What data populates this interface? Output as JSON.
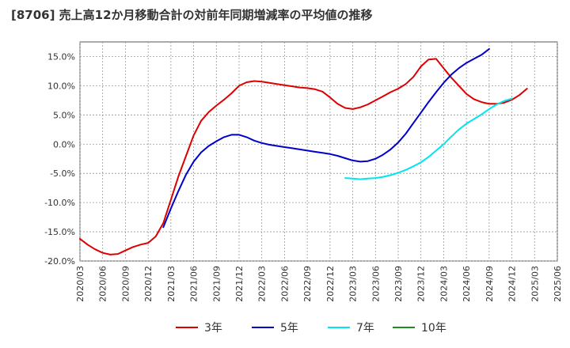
{
  "chart_data": {
    "type": "line",
    "title": "[8706]  売上高12か月移動合計の対前年同期増減率の平均値の推移",
    "xlabel": "",
    "ylabel": "",
    "ylim": [
      -20,
      17.5
    ],
    "yticks": [
      15,
      10,
      5,
      0,
      -5,
      -10,
      -15,
      -20
    ],
    "ytick_labels": [
      "15.0%",
      "10.0%",
      "5.0%",
      "0.0%",
      "-5.0%",
      "-10.0%",
      "-15.0%",
      "-20.0%"
    ],
    "x_start": "2020/03",
    "x_end": "2025/06",
    "x_tick_labels": [
      "2020/03",
      "2020/06",
      "2020/09",
      "2020/12",
      "2021/03",
      "2021/06",
      "2021/09",
      "2021/12",
      "2022/03",
      "2022/06",
      "2022/09",
      "2022/12",
      "2023/03",
      "2023/06",
      "2023/09",
      "2023/12",
      "2024/03",
      "2024/06",
      "2024/09",
      "2024/12",
      "2025/03",
      "2025/06"
    ],
    "grid": true,
    "legend_position": "bottom",
    "series": [
      {
        "name": "3年",
        "color": "#dd0000",
        "start": "2020/03",
        "values": [
          -16.2,
          -17.2,
          -18.0,
          -18.6,
          -18.9,
          -18.8,
          -18.2,
          -17.6,
          -17.2,
          -16.9,
          -15.8,
          -13.5,
          -9.5,
          -5.5,
          -2.0,
          1.5,
          4.0,
          5.5,
          6.6,
          7.6,
          8.7,
          10.0,
          10.6,
          10.8,
          10.7,
          10.5,
          10.3,
          10.1,
          9.9,
          9.7,
          9.6,
          9.4,
          9.0,
          8.0,
          6.9,
          6.2,
          6.0,
          6.3,
          6.8,
          7.5,
          8.2,
          8.9,
          9.5,
          10.3,
          11.5,
          13.3,
          14.5,
          14.6,
          13.0,
          11.4,
          10.0,
          8.6,
          7.7,
          7.2,
          6.9,
          6.9,
          7.1,
          7.6,
          8.4,
          9.5
        ]
      },
      {
        "name": "5年",
        "color": "#0000cc",
        "start": "2021/02",
        "values": [
          -14.2,
          -11.0,
          -8.0,
          -5.2,
          -3.0,
          -1.4,
          -0.3,
          0.5,
          1.2,
          1.6,
          1.6,
          1.2,
          0.6,
          0.2,
          -0.1,
          -0.3,
          -0.5,
          -0.7,
          -0.9,
          -1.1,
          -1.3,
          -1.5,
          -1.7,
          -2.0,
          -2.4,
          -2.8,
          -3.0,
          -2.9,
          -2.5,
          -1.8,
          -0.9,
          0.3,
          1.8,
          3.6,
          5.4,
          7.2,
          8.9,
          10.5,
          11.9,
          13.0,
          13.9,
          14.6,
          15.3,
          16.3
        ]
      },
      {
        "name": "7年",
        "color": "#00e5ee",
        "start": "2023/02",
        "values": [
          -5.8,
          -5.9,
          -6.0,
          -5.9,
          -5.8,
          -5.6,
          -5.3,
          -4.9,
          -4.4,
          -3.8,
          -3.1,
          -2.2,
          -1.1,
          0.0,
          1.3,
          2.5,
          3.5,
          4.3,
          5.1,
          6.0,
          6.8,
          7.4,
          7.8
        ]
      },
      {
        "name": "10年",
        "color": "#228b22",
        "start": "2025/03",
        "values": []
      }
    ]
  }
}
